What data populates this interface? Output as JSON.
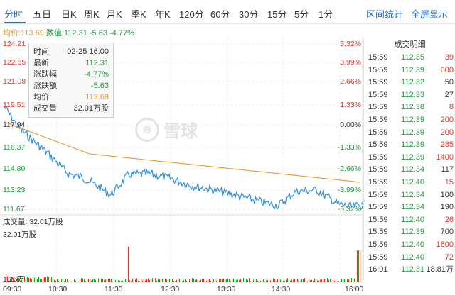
{
  "tabs": [
    "分时",
    "五日",
    "日K",
    "周K",
    "月K",
    "季K",
    "年K",
    "120分",
    "60分",
    "30分",
    "15分",
    "5分",
    "1分"
  ],
  "tabs_right": [
    "区间统计",
    "全屏显示"
  ],
  "infobar": {
    "avg_label": "均价:113.69",
    "num_label": "数值:112.31 -5.63 -4.77%"
  },
  "price_axis": [
    "124.21",
    "122.65",
    "121.08",
    "119.51",
    "117.94",
    "116.37",
    "114.80",
    "113.23",
    "111.67"
  ],
  "pct_axis": [
    "5.32%",
    "3.99%",
    "2.66%",
    "1.33%",
    "0.00%",
    "-1.33%",
    "-2.66%",
    "-3.99%",
    "-5.32%"
  ],
  "volume_label": "成交量: 32.01万股",
  "volume_max": "32.01万股",
  "volume_min": "1.26万",
  "time_axis": [
    "09:30",
    "10:30",
    "11:30",
    "12:30",
    "13:30",
    "14:30",
    "16:00"
  ],
  "tooltip": [
    {
      "k": "时间",
      "v": "02-25 16:00",
      "c": "dark"
    },
    {
      "k": "最新",
      "v": "112.31",
      "c": "green"
    },
    {
      "k": "涨跌幅",
      "v": "-4.77%",
      "c": "green"
    },
    {
      "k": "涨跌额",
      "v": "-5.63",
      "c": "green"
    },
    {
      "k": "均价",
      "v": "113.69",
      "c": "orange"
    },
    {
      "k": "成交量",
      "v": "32.01万股",
      "c": "dark"
    }
  ],
  "watermark": "雪球",
  "trades_title": "成交明细",
  "trades": [
    {
      "time": "15:59",
      "price": "112.35",
      "vol": "39",
      "pc": "green",
      "vc": "red"
    },
    {
      "time": "15:59",
      "price": "112.39",
      "vol": "600",
      "pc": "green",
      "vc": "red"
    },
    {
      "time": "15:59",
      "price": "112.32",
      "vol": "50",
      "pc": "green",
      "vc": "dark"
    },
    {
      "time": "15:59",
      "price": "112.33",
      "vol": "27",
      "pc": "green",
      "vc": "dark"
    },
    {
      "time": "15:59",
      "price": "112.38",
      "vol": "8",
      "pc": "green",
      "vc": "red"
    },
    {
      "time": "15:59",
      "price": "112.39",
      "vol": "200",
      "pc": "green",
      "vc": "red"
    },
    {
      "time": "15:59",
      "price": "112.39",
      "vol": "200",
      "pc": "green",
      "vc": "red"
    },
    {
      "time": "15:59",
      "price": "112.39",
      "vol": "285",
      "pc": "green",
      "vc": "red"
    },
    {
      "time": "15:59",
      "price": "112.39",
      "vol": "1400",
      "pc": "green",
      "vc": "red"
    },
    {
      "time": "15:59",
      "price": "112.34",
      "vol": "117",
      "pc": "green",
      "vc": "dark"
    },
    {
      "time": "15:59",
      "price": "112.40",
      "vol": "15",
      "pc": "green",
      "vc": "red"
    },
    {
      "time": "15:59",
      "price": "112.34",
      "vol": "100",
      "pc": "green",
      "vc": "dark"
    },
    {
      "time": "15:59",
      "price": "112.34",
      "vol": "190",
      "pc": "green",
      "vc": "dark"
    },
    {
      "time": "15:59",
      "price": "112.40",
      "vol": "26",
      "pc": "green",
      "vc": "red"
    },
    {
      "time": "15:59",
      "price": "112.39",
      "vol": "700",
      "pc": "green",
      "vc": "dark"
    },
    {
      "time": "15:59",
      "price": "112.40",
      "vol": "1600",
      "pc": "green",
      "vc": "red"
    },
    {
      "time": "15:59",
      "price": "112.40",
      "vol": "72",
      "pc": "green",
      "vc": "red"
    },
    {
      "time": "16:01",
      "price": "112.31",
      "vol": "18.81万",
      "pc": "green",
      "vc": "dark"
    }
  ],
  "colors": {
    "price_line": "#2f8fe0",
    "avg_line": "#e39b2e",
    "up": "#d8382f",
    "down": "#1f9d3a",
    "accent": "#1f6fd1"
  }
}
